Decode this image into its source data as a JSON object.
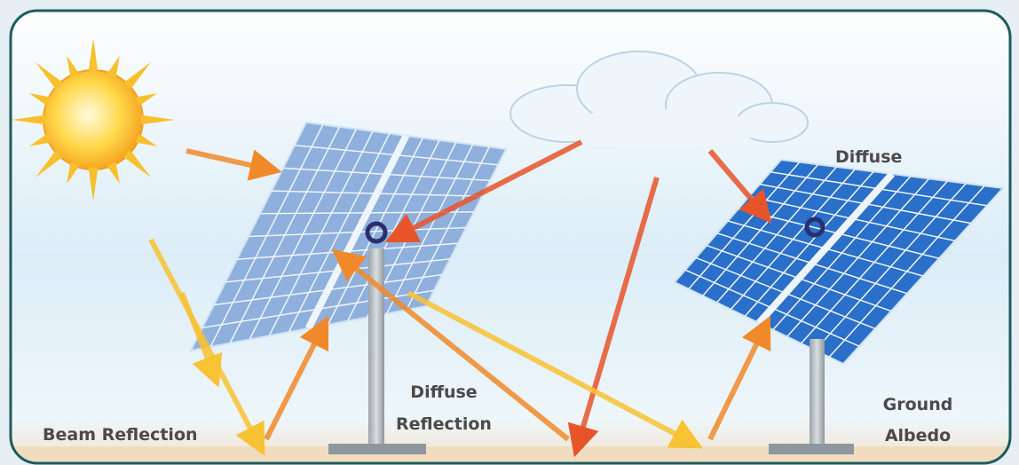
{
  "labels": {
    "diffuse": "Diffuse",
    "beam_reflection": "Beam Reflection",
    "diffuse_reflection": [
      "Diffuse",
      "Reflection"
    ],
    "ground_albedo": [
      "Ground",
      "Albedo"
    ]
  }
}
